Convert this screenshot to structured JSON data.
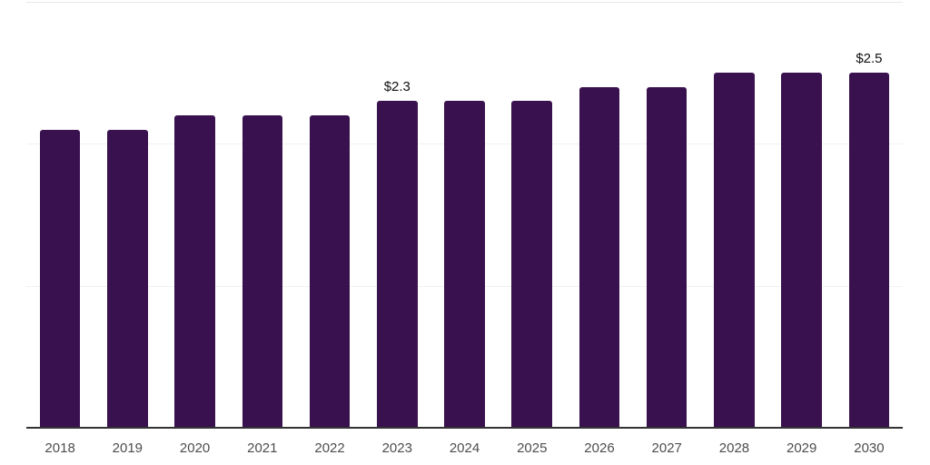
{
  "chart_data": {
    "type": "bar",
    "categories": [
      "2018",
      "2019",
      "2020",
      "2021",
      "2022",
      "2023",
      "2024",
      "2025",
      "2026",
      "2027",
      "2028",
      "2029",
      "2030"
    ],
    "values": [
      2.1,
      2.1,
      2.2,
      2.2,
      2.2,
      2.3,
      2.3,
      2.3,
      2.4,
      2.4,
      2.5,
      2.5,
      2.5
    ],
    "data_labels": {
      "2023": "$2.3",
      "2030": "$2.5"
    },
    "title": "",
    "xlabel": "",
    "ylabel": "",
    "ylim": [
      0,
      3
    ],
    "gridline_interval": 1,
    "grid": "horizontal",
    "legend": "none",
    "colors": {
      "bar": "#39114f",
      "axis_line": "#333333",
      "gridline": "#f1f1f1",
      "top_gridline": "#e9e9e9",
      "tick_label": "#4d4d4d",
      "data_label": "#111111"
    }
  }
}
